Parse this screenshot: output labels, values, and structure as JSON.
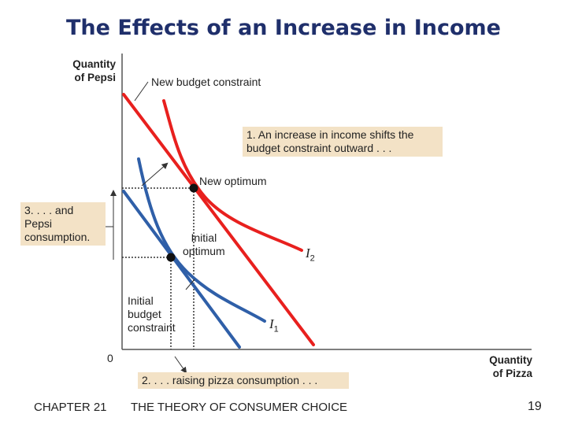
{
  "title": "The Effects of an Increase in Income",
  "axes": {
    "y_label_line1": "Quantity",
    "y_label_line2": "of Pepsi",
    "x_label_line1": "Quantity",
    "x_label_line2": "of Pizza",
    "origin": "0"
  },
  "labels": {
    "new_budget": "New budget constraint",
    "new_optimum": "New optimum",
    "initial_optimum_line1": "Initial",
    "initial_optimum_line2": "optimum",
    "initial_budget_line1": "Initial",
    "initial_budget_line2": "budget",
    "initial_budget_line3": "constraint",
    "i1": "I",
    "i1_sub": "1",
    "i2": "I",
    "i2_sub": "2"
  },
  "notes": {
    "note1_line1": "1. An increase in income shifts the",
    "note1_line2": "budget constraint outward . . .",
    "note2": "2. . . . raising pizza consumption . . .",
    "note3_line1": "3. . . . and",
    "note3_line2": "Pepsi",
    "note3_line3": "consumption."
  },
  "footer": {
    "chapter": "CHAPTER 21",
    "subject": "THE THEORY OF CONSUMER CHOICE",
    "page": "19"
  },
  "colors": {
    "title": "#1f2f6b",
    "new_curves": "#e8201e",
    "initial_curves": "#2f5fa8",
    "note_background": "#f3e2c6"
  }
}
